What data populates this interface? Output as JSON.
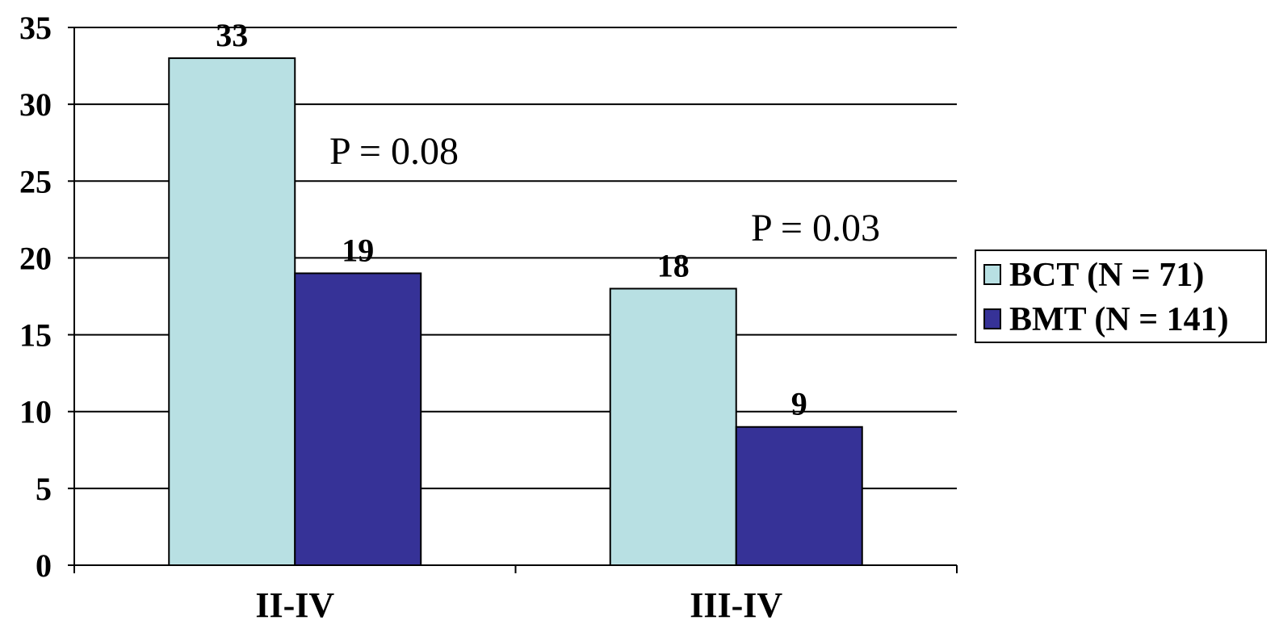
{
  "chart_data": {
    "type": "bar",
    "title": "",
    "xlabel": "",
    "ylabel": "",
    "ylim": [
      0,
      35
    ],
    "yticks": [
      0,
      5,
      10,
      15,
      20,
      25,
      30,
      35
    ],
    "grid": true,
    "legend_position": "right",
    "categories": [
      "II-IV",
      "III-IV"
    ],
    "series": [
      {
        "name": "BCT (N = 71)",
        "values": [
          33,
          18
        ],
        "color": "#b8e0e3"
      },
      {
        "name": "BMT (N = 141)",
        "values": [
          19,
          9
        ],
        "color": "#363297"
      }
    ],
    "data_labels": [
      [
        "33",
        "18"
      ],
      [
        "19",
        "9"
      ]
    ],
    "annotations": [
      "P = 0.08",
      "P = 0.03"
    ]
  }
}
